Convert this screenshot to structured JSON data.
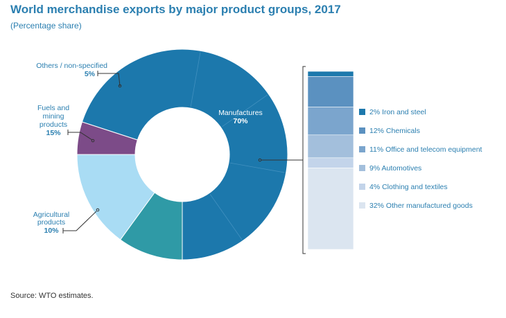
{
  "title": "World merchandise exports by major product groups, 2017",
  "subtitle": "(Percentage share)",
  "source": "Source: WTO estimates.",
  "chart_data": [
    {
      "type": "pie",
      "style": "donut",
      "slices": [
        {
          "label_lines": [
            "Manufactures"
          ],
          "value_label": "70%",
          "value": 70,
          "color": "#1c78ac"
        },
        {
          "label_lines": [
            "Agricultural",
            "products"
          ],
          "value_label": "10%",
          "value": 10,
          "color": "#2f9aa6"
        },
        {
          "label_lines": [
            "Fuels and",
            "mining",
            "products"
          ],
          "value_label": "15%",
          "value": 15,
          "color": "#a9dcf4"
        },
        {
          "label_lines": [
            "Others / non-specified"
          ],
          "value_label": "5%",
          "value": 5,
          "color": "#7c4b88"
        }
      ]
    },
    {
      "type": "bar",
      "style": "stacked-100",
      "description_of": "Manufactures breakdown",
      "segments": [
        {
          "label": "2% Iron and steel",
          "value": 2,
          "color": "#1c78ac"
        },
        {
          "label": "12% Chemicals",
          "value": 12,
          "color": "#5b91c0"
        },
        {
          "label": "11% Office and telecom equipment",
          "value": 11,
          "color": "#7ba5cd"
        },
        {
          "label": "9% Automotives",
          "value": 9,
          "color": "#a3bfdc"
        },
        {
          "label": "4% Clothing and textiles",
          "value": 4,
          "color": "#c3d4ea"
        },
        {
          "label": "32% Other manufactured goods",
          "value": 32,
          "color": "#dbe5f0"
        }
      ]
    }
  ],
  "colors": {
    "title": "#2b7fb0",
    "label_text": "#2b7fb0",
    "leader": "#333333",
    "divider": "#5aa0cc"
  }
}
